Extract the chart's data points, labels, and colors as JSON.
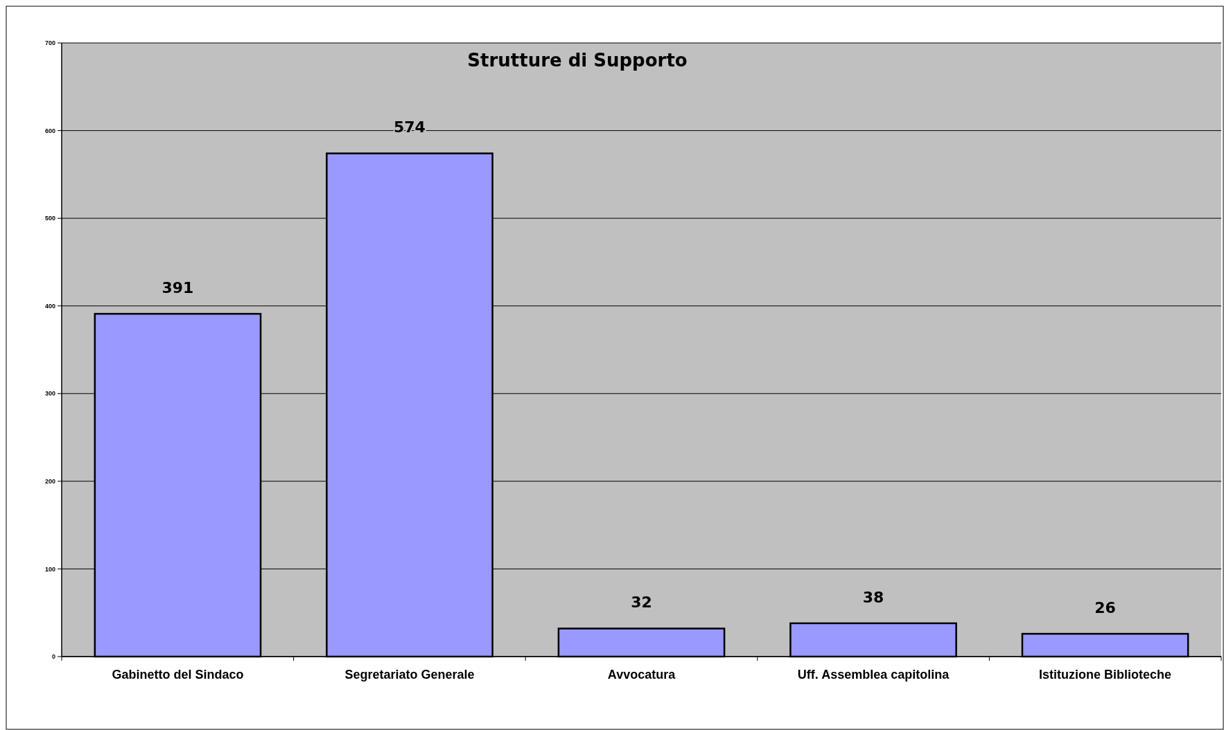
{
  "chart_data": {
    "type": "bar",
    "title": "Strutture di Supporto",
    "categories": [
      "Gabinetto del Sindaco",
      "Segretariato Generale",
      "Avvocatura",
      "Uff. Assemblea capitolina",
      "Istituzione Biblioteche"
    ],
    "values": [
      391,
      574,
      32,
      38,
      26
    ],
    "color": "#9999ff",
    "ylim": [
      0,
      700
    ],
    "yticks": [
      0,
      100,
      200,
      300,
      400,
      500,
      600,
      700
    ],
    "grid": "y",
    "data_labels": true
  }
}
